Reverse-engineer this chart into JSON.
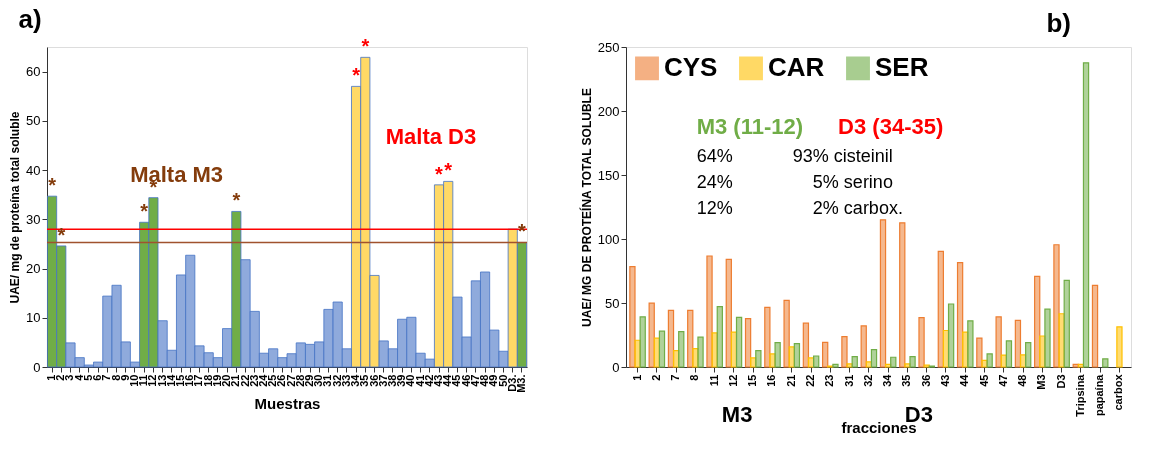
{
  "chart_data": [
    {
      "type": "bar",
      "title": "a)",
      "xlabel": "Muestras",
      "ylabel": "UAE/ mg de proteína total soluble",
      "categories": [
        "1",
        "2",
        "3",
        "4",
        "5",
        "6",
        "7",
        "8",
        "9",
        "10",
        "11",
        "12",
        "13",
        "14",
        "15",
        "16",
        "17",
        "18",
        "19",
        "20",
        "21",
        "22",
        "23",
        "24",
        "25",
        "26",
        "27",
        "28",
        "29",
        "30",
        "31",
        "32",
        "33",
        "34",
        "35",
        "36",
        "37",
        "38",
        "39",
        "40",
        "41",
        "42",
        "43",
        "44",
        "45",
        "46",
        "47",
        "48",
        "49",
        "50",
        "D3.",
        "M3."
      ],
      "values": [
        34.7,
        24.6,
        4.9,
        1.9,
        0.4,
        1.0,
        14.4,
        16.6,
        5.1,
        1.0,
        29.4,
        34.4,
        9.4,
        3.4,
        18.7,
        22.7,
        4.3,
        2.9,
        1.9,
        7.8,
        31.6,
        21.8,
        11.3,
        2.8,
        3.7,
        1.9,
        2.7,
        4.9,
        4.6,
        5.1,
        11.7,
        13.2,
        3.7,
        57.0,
        62.9,
        18.6,
        5.3,
        3.7,
        9.7,
        10.1,
        2.8,
        1.6,
        37.0,
        37.7,
        14.2,
        6.1,
        17.5,
        19.3,
        7.5,
        3.2,
        28.0,
        25.3
      ],
      "colors": [
        "#70ad47",
        "#70ad47",
        "#8faadc",
        "#8faadc",
        "#8faadc",
        "#8faadc",
        "#8faadc",
        "#8faadc",
        "#8faadc",
        "#8faadc",
        "#70ad47",
        "#70ad47",
        "#8faadc",
        "#8faadc",
        "#8faadc",
        "#8faadc",
        "#8faadc",
        "#8faadc",
        "#8faadc",
        "#8faadc",
        "#70ad47",
        "#8faadc",
        "#8faadc",
        "#8faadc",
        "#8faadc",
        "#8faadc",
        "#8faadc",
        "#8faadc",
        "#8faadc",
        "#8faadc",
        "#8faadc",
        "#8faadc",
        "#8faadc",
        "#ffd966",
        "#ffd966",
        "#ffd966",
        "#8faadc",
        "#8faadc",
        "#8faadc",
        "#8faadc",
        "#8faadc",
        "#8faadc",
        "#ffd966",
        "#ffd966",
        "#8faadc",
        "#8faadc",
        "#8faadc",
        "#8faadc",
        "#8faadc",
        "#8faadc",
        "#ffd966",
        "#70ad47"
      ],
      "ylim": [
        0,
        65
      ],
      "yticks": [
        0,
        10,
        20,
        30,
        40,
        50,
        60
      ],
      "ref_lines": [
        {
          "axis": "y",
          "value": 25.3,
          "color": "#a0522d"
        },
        {
          "axis": "y",
          "value": 28.0,
          "color": "#ff0000"
        }
      ],
      "annotations": [
        "Malta M3",
        "Malta D3",
        {
          "text": "*",
          "x": "1",
          "y": 34.7
        },
        {
          "text": "*",
          "x": "2",
          "y": 24.6
        },
        {
          "text": "*",
          "x": "11",
          "y": 29.4
        },
        {
          "text": "*",
          "x": "12",
          "y": 34.4
        },
        {
          "text": "*",
          "x": "21",
          "y": 31.6
        },
        {
          "text": "*",
          "x": "34",
          "y": 57.0
        },
        {
          "text": "*",
          "x": "35",
          "y": 62.9
        },
        {
          "text": "*",
          "x": "43",
          "y": 37.0
        },
        {
          "text": "*",
          "x": "44",
          "y": 37.7
        },
        {
          "text": "*",
          "x": "M3.",
          "y": 25.3
        }
      ]
    },
    {
      "type": "bar",
      "title": "b)",
      "xlabel": "fracciones",
      "ylabel": "UAE/ MG DE PROTEÍNA TOTAL SOLUBLE",
      "categories": [
        "1",
        "2",
        "7",
        "8",
        "11",
        "12",
        "15",
        "16",
        "21",
        "22",
        "23",
        "31",
        "32",
        "34",
        "35",
        "36",
        "43",
        "44",
        "45",
        "47",
        "48",
        "M3",
        "D3",
        "Tripsina",
        "papaína",
        "carbox"
      ],
      "series": [
        {
          "name": "CYS",
          "color": "#ed7d31",
          "values": [
            78.4,
            49.9,
            44.2,
            44.2,
            86.7,
            84.1,
            37.8,
            46.6,
            52.0,
            34.2,
            19.2,
            23.8,
            32.1,
            115.0,
            112.6,
            38.5,
            90.3,
            81.5,
            22.6,
            39.2,
            36.4,
            70.8,
            95.5,
            2.1,
            63.7,
            null
          ]
        },
        {
          "name": "CAR",
          "color": "#ffc000",
          "values": [
            20.9,
            22.6,
            12.8,
            14.3,
            26.6,
            27.3,
            7.1,
            10.2,
            15.7,
            7.1,
            0.7,
            2.4,
            4.0,
            2.1,
            2.4,
            1.4,
            28.5,
            27.3,
            5.2,
            9.3,
            9.5,
            24.2,
            41.6,
            2.1,
            null,
            31.4
          ]
        },
        {
          "name": "SER",
          "color": "#70ad47",
          "values": [
            39.2,
            28.0,
            27.6,
            23.3,
            47.1,
            38.7,
            12.8,
            19.0,
            18.3,
            8.6,
            2.1,
            8.1,
            13.5,
            7.6,
            8.1,
            0.7,
            49.2,
            36.1,
            10.2,
            20.4,
            19.0,
            45.2,
            67.7,
            237.6,
            6.4,
            null
          ]
        }
      ],
      "ylim": [
        0,
        250
      ],
      "yticks": [
        0,
        50,
        100,
        150,
        200,
        250
      ],
      "legend": "top left",
      "annotations": [
        "M3 (11-12)",
        "D3 (34-35)",
        "64%",
        "93%  cisteinil",
        "24%",
        "5%  serino",
        "12%",
        "2%  carbox.",
        "M3",
        "D3"
      ]
    }
  ]
}
